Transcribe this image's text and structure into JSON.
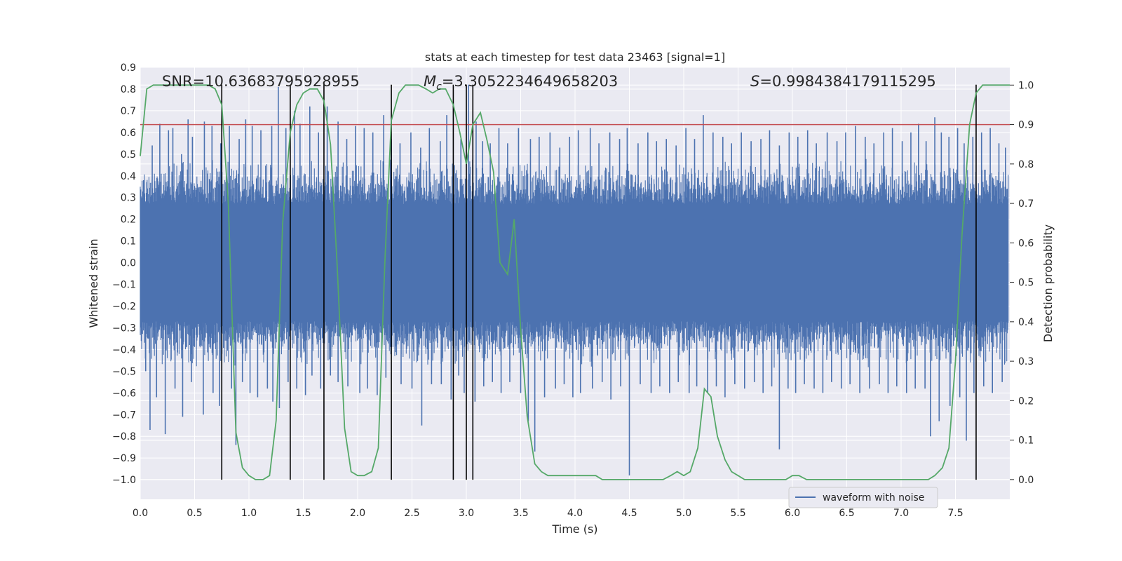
{
  "chart_data": {
    "type": "line",
    "title": "stats at each timestep for test data 23463 [signal=1]",
    "xlabel": "Time (s)",
    "ylabel": "Whitened strain",
    "ylabel_right": "Detection probability",
    "xlim": [
      0.0,
      8.0
    ],
    "ylim": [
      -1.09,
      0.9
    ],
    "ylim_right": [
      -0.05,
      1.045
    ],
    "x_ticks": [
      "0.0",
      "0.5",
      "1.0",
      "1.5",
      "2.0",
      "2.5",
      "3.0",
      "3.5",
      "4.0",
      "4.5",
      "5.0",
      "5.5",
      "6.0",
      "6.5",
      "7.0",
      "7.5"
    ],
    "y_ticks": [
      "0.9",
      "0.8",
      "0.7",
      "0.6",
      "0.5",
      "0.4",
      "0.3",
      "0.2",
      "0.1",
      "0.0",
      "−0.1",
      "−0.2",
      "−0.3",
      "−0.4",
      "−0.5",
      "−0.6",
      "−0.7",
      "−0.8",
      "−0.9",
      "−1.0"
    ],
    "y_tick_values": [
      0.9,
      0.8,
      0.7,
      0.6,
      0.5,
      0.4,
      0.3,
      0.2,
      0.1,
      0.0,
      -0.1,
      -0.2,
      -0.3,
      -0.4,
      -0.5,
      -0.6,
      -0.7,
      -0.8,
      -0.9,
      -1.0
    ],
    "y2_ticks": [
      "1.0",
      "0.9",
      "0.8",
      "0.7",
      "0.6",
      "0.5",
      "0.4",
      "0.3",
      "0.2",
      "0.1",
      "0.0"
    ],
    "y2_tick_values": [
      1.0,
      0.9,
      0.8,
      0.7,
      0.6,
      0.5,
      0.4,
      0.3,
      0.2,
      0.1,
      0.0
    ],
    "annotations": {
      "snr": "SNR=10.63683795928955",
      "mc_symbol": "M",
      "mc_sub": "c",
      "mc_value": "=3.3052234649658203",
      "s_symbol": "S",
      "s_value": "=0.9984384179115295"
    },
    "threshold": {
      "value": 0.9,
      "axis": "right",
      "color": "#c44e52"
    },
    "vertical_lines": {
      "x": [
        0.75,
        1.38,
        1.69,
        2.31,
        2.88,
        3.0,
        3.06,
        7.69
      ],
      "y_range": [
        -1.0,
        0.82
      ],
      "color": "#000000"
    },
    "series": [
      {
        "name": "waveform with noise",
        "axis": "left",
        "color": "#4c72b0",
        "style": "dense noisy waveform",
        "core_band": [
          -0.27,
          0.27
        ],
        "envelope_band": [
          -0.45,
          0.45
        ],
        "spike_up": [
          [
            0.03,
            0.38
          ],
          [
            0.11,
            0.54
          ],
          [
            0.18,
            0.64
          ],
          [
            0.26,
            0.61
          ],
          [
            0.3,
            0.62
          ],
          [
            0.38,
            0.5
          ],
          [
            0.44,
            0.66
          ],
          [
            0.48,
            0.58
          ],
          [
            0.59,
            0.65
          ],
          [
            0.66,
            0.63
          ],
          [
            0.74,
            0.55
          ],
          [
            0.82,
            0.63
          ],
          [
            0.91,
            0.57
          ],
          [
            0.97,
            0.66
          ],
          [
            1.03,
            0.63
          ],
          [
            1.11,
            0.61
          ],
          [
            1.21,
            0.63
          ],
          [
            1.27,
            0.81
          ],
          [
            1.34,
            0.62
          ],
          [
            1.42,
            0.7
          ],
          [
            1.47,
            0.64
          ],
          [
            1.56,
            0.72
          ],
          [
            1.64,
            0.6
          ],
          [
            1.72,
            0.72
          ],
          [
            1.82,
            0.65
          ],
          [
            1.9,
            0.57
          ],
          [
            1.98,
            0.63
          ],
          [
            2.06,
            0.62
          ],
          [
            2.14,
            0.6
          ],
          [
            2.24,
            0.68
          ],
          [
            2.31,
            0.57
          ],
          [
            2.39,
            0.55
          ],
          [
            2.49,
            0.6
          ],
          [
            2.58,
            0.53
          ],
          [
            2.66,
            0.62
          ],
          [
            2.76,
            0.56
          ],
          [
            2.82,
            0.68
          ],
          [
            2.95,
            0.57
          ],
          [
            3.02,
            0.82
          ],
          [
            3.09,
            0.65
          ],
          [
            3.15,
            0.56
          ],
          [
            3.22,
            0.55
          ],
          [
            3.3,
            0.62
          ],
          [
            3.38,
            0.55
          ],
          [
            3.48,
            0.62
          ],
          [
            3.59,
            0.57
          ],
          [
            3.67,
            0.58
          ],
          [
            3.77,
            0.6
          ],
          [
            3.86,
            0.53
          ],
          [
            3.95,
            0.58
          ],
          [
            4.03,
            0.61
          ],
          [
            4.14,
            0.62
          ],
          [
            4.22,
            0.55
          ],
          [
            4.32,
            0.6
          ],
          [
            4.41,
            0.57
          ],
          [
            4.48,
            0.62
          ],
          [
            4.58,
            0.55
          ],
          [
            4.67,
            0.6
          ],
          [
            4.75,
            0.56
          ],
          [
            4.84,
            0.57
          ],
          [
            4.93,
            0.54
          ],
          [
            5.02,
            0.62
          ],
          [
            5.1,
            0.57
          ],
          [
            5.18,
            0.68
          ],
          [
            5.27,
            0.6
          ],
          [
            5.36,
            0.58
          ],
          [
            5.44,
            0.55
          ],
          [
            5.53,
            0.6
          ],
          [
            5.62,
            0.56
          ],
          [
            5.71,
            0.57
          ],
          [
            5.79,
            0.61
          ],
          [
            5.88,
            0.54
          ],
          [
            5.97,
            0.6
          ],
          [
            6.05,
            0.58
          ],
          [
            6.14,
            0.61
          ],
          [
            6.22,
            0.55
          ],
          [
            6.32,
            0.6
          ],
          [
            6.41,
            0.56
          ],
          [
            6.49,
            0.6
          ],
          [
            6.58,
            0.63
          ],
          [
            6.67,
            0.58
          ],
          [
            6.75,
            0.55
          ],
          [
            6.84,
            0.6
          ],
          [
            6.92,
            0.62
          ],
          [
            7.01,
            0.56
          ],
          [
            7.09,
            0.6
          ],
          [
            7.16,
            0.64
          ],
          [
            7.23,
            0.56
          ],
          [
            7.31,
            0.67
          ],
          [
            7.37,
            0.6
          ],
          [
            7.44,
            0.58
          ],
          [
            7.52,
            0.62
          ],
          [
            7.58,
            0.55
          ],
          [
            7.66,
            0.58
          ],
          [
            7.74,
            0.6
          ],
          [
            7.82,
            0.62
          ],
          [
            7.9,
            0.55
          ],
          [
            7.96,
            0.53
          ]
        ],
        "spike_down": [
          [
            0.05,
            -0.5
          ],
          [
            0.09,
            -0.77
          ],
          [
            0.15,
            -0.62
          ],
          [
            0.23,
            -0.79
          ],
          [
            0.32,
            -0.58
          ],
          [
            0.39,
            -0.71
          ],
          [
            0.47,
            -0.55
          ],
          [
            0.58,
            -0.7
          ],
          [
            0.67,
            -0.6
          ],
          [
            0.73,
            -0.66
          ],
          [
            0.84,
            -0.58
          ],
          [
            0.88,
            -0.84
          ],
          [
            0.94,
            -0.55
          ],
          [
            1.01,
            -0.6
          ],
          [
            1.08,
            -0.62
          ],
          [
            1.17,
            -0.58
          ],
          [
            1.22,
            -0.64
          ],
          [
            1.28,
            -0.67
          ],
          [
            1.36,
            -0.55
          ],
          [
            1.44,
            -0.58
          ],
          [
            1.52,
            -0.61
          ],
          [
            1.58,
            -0.52
          ],
          [
            1.66,
            -0.58
          ],
          [
            1.75,
            -0.52
          ],
          [
            1.82,
            -0.55
          ],
          [
            1.91,
            -0.57
          ],
          [
            2.02,
            -0.6
          ],
          [
            2.09,
            -0.58
          ],
          [
            2.18,
            -0.61
          ],
          [
            2.26,
            -0.53
          ],
          [
            2.4,
            -0.56
          ],
          [
            2.5,
            -0.58
          ],
          [
            2.59,
            -0.75
          ],
          [
            2.68,
            -0.56
          ],
          [
            2.77,
            -0.56
          ],
          [
            2.86,
            -0.63
          ],
          [
            2.93,
            -0.52
          ],
          [
            2.98,
            -0.6
          ],
          [
            3.08,
            -0.64
          ],
          [
            3.16,
            -0.57
          ],
          [
            3.24,
            -0.55
          ],
          [
            3.32,
            -0.6
          ],
          [
            3.4,
            -0.55
          ],
          [
            3.5,
            -0.6
          ],
          [
            3.57,
            -0.73
          ],
          [
            3.63,
            -0.87
          ],
          [
            3.72,
            -0.62
          ],
          [
            3.82,
            -0.58
          ],
          [
            3.9,
            -0.56
          ],
          [
            3.98,
            -0.62
          ],
          [
            4.05,
            -0.6
          ],
          [
            4.16,
            -0.58
          ],
          [
            4.25,
            -0.55
          ],
          [
            4.33,
            -0.63
          ],
          [
            4.42,
            -0.57
          ],
          [
            4.5,
            -0.98
          ],
          [
            4.6,
            -0.56
          ],
          [
            4.7,
            -0.6
          ],
          [
            4.78,
            -0.57
          ],
          [
            4.87,
            -0.6
          ],
          [
            4.95,
            -0.55
          ],
          [
            5.05,
            -0.6
          ],
          [
            5.12,
            -0.57
          ],
          [
            5.22,
            -0.6
          ],
          [
            5.3,
            -0.57
          ],
          [
            5.38,
            -0.62
          ],
          [
            5.47,
            -0.56
          ],
          [
            5.56,
            -0.58
          ],
          [
            5.65,
            -0.55
          ],
          [
            5.73,
            -0.6
          ],
          [
            5.81,
            -0.57
          ],
          [
            5.88,
            -0.86
          ],
          [
            5.96,
            -0.58
          ],
          [
            6.03,
            -0.6
          ],
          [
            6.11,
            -0.56
          ],
          [
            6.2,
            -0.58
          ],
          [
            6.28,
            -0.6
          ],
          [
            6.36,
            -0.55
          ],
          [
            6.45,
            -0.58
          ],
          [
            6.53,
            -0.56
          ],
          [
            6.62,
            -0.6
          ],
          [
            6.71,
            -0.58
          ],
          [
            6.8,
            -0.56
          ],
          [
            6.88,
            -0.6
          ],
          [
            6.96,
            -0.57
          ],
          [
            7.05,
            -0.6
          ],
          [
            7.13,
            -0.58
          ],
          [
            7.22,
            -0.58
          ],
          [
            7.27,
            -0.8
          ],
          [
            7.35,
            -0.73
          ],
          [
            7.45,
            -0.66
          ],
          [
            7.54,
            -0.62
          ],
          [
            7.6,
            -0.82
          ],
          [
            7.67,
            -0.6
          ],
          [
            7.76,
            -0.57
          ],
          [
            7.84,
            -0.6
          ],
          [
            7.93,
            -0.55
          ]
        ]
      },
      {
        "name": "detection probability",
        "axis": "right",
        "color": "#55a868",
        "x": [
          0.0,
          0.06,
          0.12,
          0.19,
          0.25,
          0.31,
          0.38,
          0.44,
          0.5,
          0.56,
          0.63,
          0.69,
          0.75,
          0.81,
          0.88,
          0.94,
          1.0,
          1.06,
          1.13,
          1.19,
          1.25,
          1.31,
          1.38,
          1.44,
          1.5,
          1.56,
          1.63,
          1.69,
          1.75,
          1.81,
          1.88,
          1.94,
          2.0,
          2.06,
          2.13,
          2.19,
          2.25,
          2.31,
          2.38,
          2.44,
          2.5,
          2.56,
          2.63,
          2.69,
          2.75,
          2.81,
          2.88,
          2.94,
          3.0,
          3.06,
          3.13,
          3.19,
          3.25,
          3.31,
          3.38,
          3.44,
          3.5,
          3.56,
          3.63,
          3.69,
          3.75,
          3.81,
          3.88,
          3.94,
          4.0,
          4.06,
          4.13,
          4.19,
          4.25,
          4.31,
          4.38,
          4.44,
          4.5,
          4.56,
          4.63,
          4.69,
          4.75,
          4.81,
          4.88,
          4.94,
          5.0,
          5.06,
          5.13,
          5.19,
          5.25,
          5.31,
          5.38,
          5.44,
          5.5,
          5.56,
          5.63,
          5.69,
          5.75,
          5.81,
          5.88,
          5.94,
          6.0,
          6.06,
          6.13,
          6.19,
          6.25,
          6.31,
          6.38,
          6.44,
          6.5,
          6.56,
          6.63,
          6.69,
          6.75,
          6.81,
          6.88,
          6.94,
          7.0,
          7.06,
          7.13,
          7.19,
          7.25,
          7.31,
          7.38,
          7.44,
          7.5,
          7.56,
          7.63,
          7.69,
          7.75,
          7.81,
          7.88,
          7.94,
          8.0
        ],
        "values": [
          0.82,
          0.99,
          1.0,
          1.0,
          1.0,
          1.0,
          1.0,
          1.0,
          1.0,
          1.0,
          1.0,
          0.99,
          0.95,
          0.7,
          0.12,
          0.03,
          0.01,
          0.0,
          0.0,
          0.01,
          0.15,
          0.65,
          0.88,
          0.95,
          0.98,
          0.99,
          0.99,
          0.96,
          0.85,
          0.55,
          0.13,
          0.02,
          0.01,
          0.01,
          0.02,
          0.08,
          0.55,
          0.91,
          0.98,
          1.0,
          1.0,
          1.0,
          0.99,
          0.98,
          0.99,
          0.99,
          0.95,
          0.88,
          0.8,
          0.9,
          0.93,
          0.86,
          0.78,
          0.55,
          0.52,
          0.66,
          0.38,
          0.16,
          0.04,
          0.02,
          0.01,
          0.01,
          0.01,
          0.01,
          0.01,
          0.01,
          0.01,
          0.01,
          0.0,
          0.0,
          0.0,
          0.0,
          0.0,
          0.0,
          0.0,
          0.0,
          0.0,
          0.0,
          0.01,
          0.02,
          0.01,
          0.02,
          0.08,
          0.23,
          0.21,
          0.11,
          0.05,
          0.02,
          0.01,
          0.0,
          0.0,
          0.0,
          0.0,
          0.0,
          0.0,
          0.0,
          0.01,
          0.01,
          0.0,
          0.0,
          0.0,
          0.0,
          0.0,
          0.0,
          0.0,
          0.0,
          0.0,
          0.0,
          0.0,
          0.0,
          0.0,
          0.0,
          0.0,
          0.0,
          0.0,
          0.0,
          0.0,
          0.01,
          0.03,
          0.08,
          0.3,
          0.62,
          0.9,
          0.98,
          1.0,
          1.0,
          1.0,
          1.0,
          1.0
        ]
      }
    ],
    "legend": {
      "location": "lower-right",
      "entries": [
        "waveform with noise"
      ]
    }
  }
}
